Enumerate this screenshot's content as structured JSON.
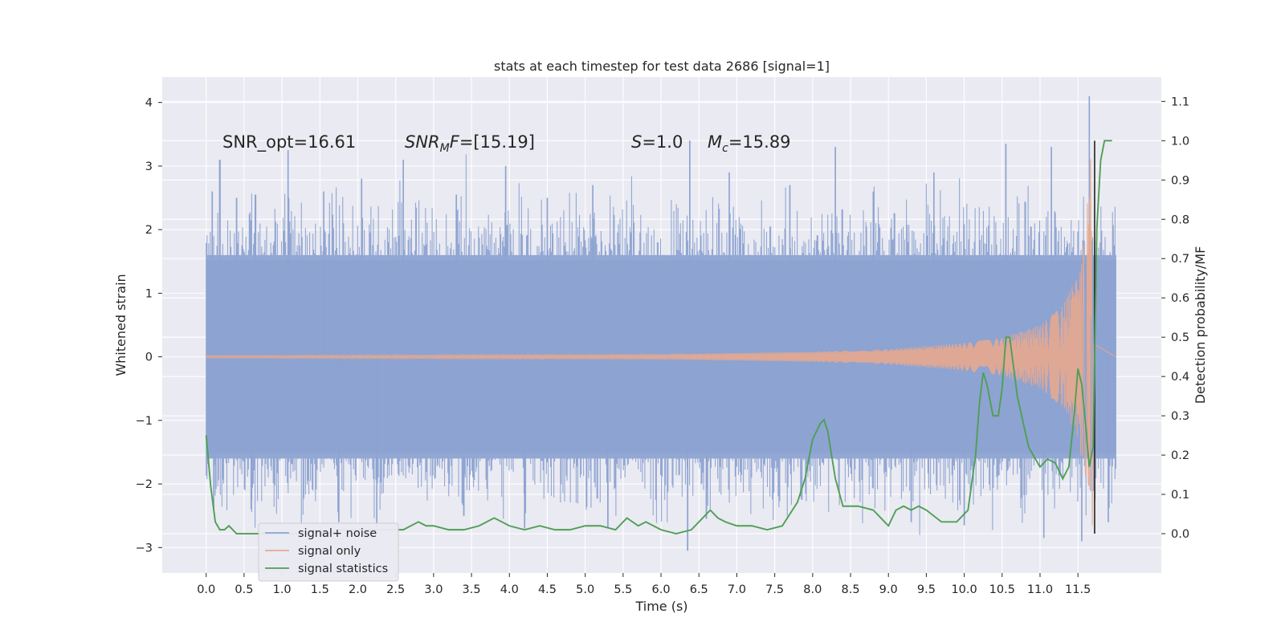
{
  "chart_data": {
    "type": "line",
    "title": "stats at each timestep for test data 2686 [signal=1]",
    "xlabel": "Time (s)",
    "ylabel": "Whitened strain",
    "y2label": "Detection probability/MF",
    "xlim": [
      -0.58,
      12.6
    ],
    "ylim": [
      -3.4,
      4.4
    ],
    "y2lim": [
      -0.1,
      1.162
    ],
    "x_ticks": [
      "0.0",
      "0.5",
      "1.0",
      "1.5",
      "2.0",
      "2.5",
      "3.0",
      "3.5",
      "4.0",
      "4.5",
      "5.0",
      "5.5",
      "6.0",
      "6.5",
      "7.0",
      "7.5",
      "8.0",
      "8.5",
      "9.0",
      "9.5",
      "10.0",
      "10.5",
      "11.0",
      "11.5"
    ],
    "y_ticks": [
      "−3",
      "−2",
      "−1",
      "0",
      "1",
      "2",
      "3",
      "4"
    ],
    "y2_ticks": [
      "0.0",
      "0.1",
      "0.2",
      "0.3",
      "0.4",
      "0.5",
      "0.6",
      "0.7",
      "0.8",
      "0.9",
      "1.0",
      "1.1"
    ],
    "grid": true,
    "legend_position": "lower-left",
    "annotations": {
      "snr_opt": "SNR_opt=16.61",
      "snr_mf": "=[15.19]",
      "s_val": "=1.0",
      "mc_val": "=15.89"
    },
    "series": [
      {
        "name": "signal+ noise",
        "axis": "left",
        "color": "#8da3d1",
        "envelope": {
          "x_range": [
            0.0,
            12.0
          ],
          "typical_amplitude": 1.6,
          "peaks": [
            {
              "x": 0.08,
              "y": 2.6
            },
            {
              "x": 0.18,
              "y": 3.1
            },
            {
              "x": 0.4,
              "y": 2.5
            },
            {
              "x": 0.65,
              "y": 2.55
            },
            {
              "x": 1.08,
              "y": 3.25
            },
            {
              "x": 1.55,
              "y": 2.6
            },
            {
              "x": 2.05,
              "y": 2.8
            },
            {
              "x": 2.6,
              "y": 3.1
            },
            {
              "x": 3.3,
              "y": 2.55
            },
            {
              "x": 3.95,
              "y": 3.0
            },
            {
              "x": 4.5,
              "y": 2.5
            },
            {
              "x": 5.1,
              "y": 2.7
            },
            {
              "x": 6.38,
              "y": 3.4
            },
            {
              "x": 6.9,
              "y": 2.9
            },
            {
              "x": 7.7,
              "y": 2.7
            },
            {
              "x": 8.3,
              "y": 3.3
            },
            {
              "x": 8.8,
              "y": 2.6
            },
            {
              "x": 9.6,
              "y": 2.9
            },
            {
              "x": 10.55,
              "y": 3.35
            },
            {
              "x": 11.15,
              "y": 3.3
            },
            {
              "x": 11.65,
              "y": 4.1
            }
          ],
          "troughs": [
            {
              "x": 0.1,
              "y": -2.4
            },
            {
              "x": 0.6,
              "y": -2.25
            },
            {
              "x": 1.75,
              "y": -2.6
            },
            {
              "x": 2.25,
              "y": -2.7
            },
            {
              "x": 3.4,
              "y": -2.5
            },
            {
              "x": 4.2,
              "y": -2.7
            },
            {
              "x": 5.3,
              "y": -2.7
            },
            {
              "x": 6.35,
              "y": -3.05
            },
            {
              "x": 6.6,
              "y": -2.55
            },
            {
              "x": 9.3,
              "y": -2.6
            },
            {
              "x": 10.0,
              "y": -2.65
            },
            {
              "x": 11.05,
              "y": -2.85
            },
            {
              "x": 11.55,
              "y": -2.9
            },
            {
              "x": 11.9,
              "y": -2.6
            }
          ]
        }
      },
      {
        "name": "signal only",
        "axis": "left",
        "color": "#e8a88e",
        "chirp": {
          "x_start": 0.0,
          "x_merger": 11.68,
          "x_end": 12.0,
          "amplitude_points": [
            [
              0.0,
              0.02
            ],
            [
              6.0,
              0.04
            ],
            [
              8.0,
              0.08
            ],
            [
              9.0,
              0.12
            ],
            [
              10.0,
              0.22
            ],
            [
              10.5,
              0.3
            ],
            [
              11.0,
              0.5
            ],
            [
              11.3,
              0.8
            ],
            [
              11.5,
              1.3
            ],
            [
              11.6,
              2.0
            ],
            [
              11.68,
              3.3
            ]
          ],
          "merger_min": -2.65
        }
      },
      {
        "name": "signal statistics",
        "axis": "right",
        "color": "#4f9f55",
        "x": [
          0.0,
          0.06,
          0.12,
          0.18,
          0.24,
          0.3,
          0.4,
          0.5,
          0.6,
          0.8,
          1.0,
          1.2,
          1.4,
          1.6,
          1.8,
          2.0,
          2.2,
          2.4,
          2.6,
          2.8,
          2.9,
          3.0,
          3.2,
          3.4,
          3.6,
          3.8,
          3.9,
          4.0,
          4.2,
          4.4,
          4.6,
          4.8,
          5.0,
          5.2,
          5.4,
          5.55,
          5.7,
          5.8,
          5.9,
          6.0,
          6.2,
          6.4,
          6.55,
          6.65,
          6.75,
          6.85,
          7.0,
          7.2,
          7.4,
          7.6,
          7.8,
          7.9,
          8.0,
          8.1,
          8.15,
          8.2,
          8.3,
          8.4,
          8.6,
          8.8,
          8.9,
          9.0,
          9.1,
          9.2,
          9.3,
          9.4,
          9.5,
          9.7,
          9.9,
          10.05,
          10.15,
          10.2,
          10.25,
          10.3,
          10.38,
          10.45,
          10.5,
          10.55,
          10.6,
          10.7,
          10.85,
          11.0,
          11.1,
          11.2,
          11.3,
          11.38,
          11.45,
          11.5,
          11.55,
          11.6,
          11.65,
          11.7,
          11.75,
          11.8,
          11.85,
          11.9,
          11.95
        ],
        "values": [
          0.25,
          0.12,
          0.03,
          0.01,
          0.01,
          0.02,
          0.0,
          0.0,
          0.0,
          0.0,
          0.0,
          0.0,
          0.01,
          0.0,
          0.01,
          0.01,
          0.01,
          0.01,
          0.01,
          0.03,
          0.02,
          0.02,
          0.01,
          0.01,
          0.02,
          0.04,
          0.03,
          0.02,
          0.01,
          0.02,
          0.01,
          0.01,
          0.02,
          0.02,
          0.01,
          0.04,
          0.02,
          0.03,
          0.02,
          0.01,
          0.0,
          0.01,
          0.04,
          0.06,
          0.04,
          0.03,
          0.02,
          0.02,
          0.01,
          0.02,
          0.08,
          0.14,
          0.24,
          0.28,
          0.29,
          0.26,
          0.14,
          0.07,
          0.07,
          0.06,
          0.04,
          0.02,
          0.06,
          0.07,
          0.06,
          0.07,
          0.06,
          0.03,
          0.03,
          0.06,
          0.2,
          0.33,
          0.41,
          0.38,
          0.3,
          0.3,
          0.37,
          0.5,
          0.5,
          0.35,
          0.22,
          0.17,
          0.19,
          0.18,
          0.14,
          0.17,
          0.3,
          0.42,
          0.38,
          0.28,
          0.17,
          0.22,
          0.78,
          0.95,
          1.0,
          1.0,
          1.0
        ]
      }
    ],
    "vline": {
      "x": 11.72,
      "color": "#222222"
    }
  }
}
